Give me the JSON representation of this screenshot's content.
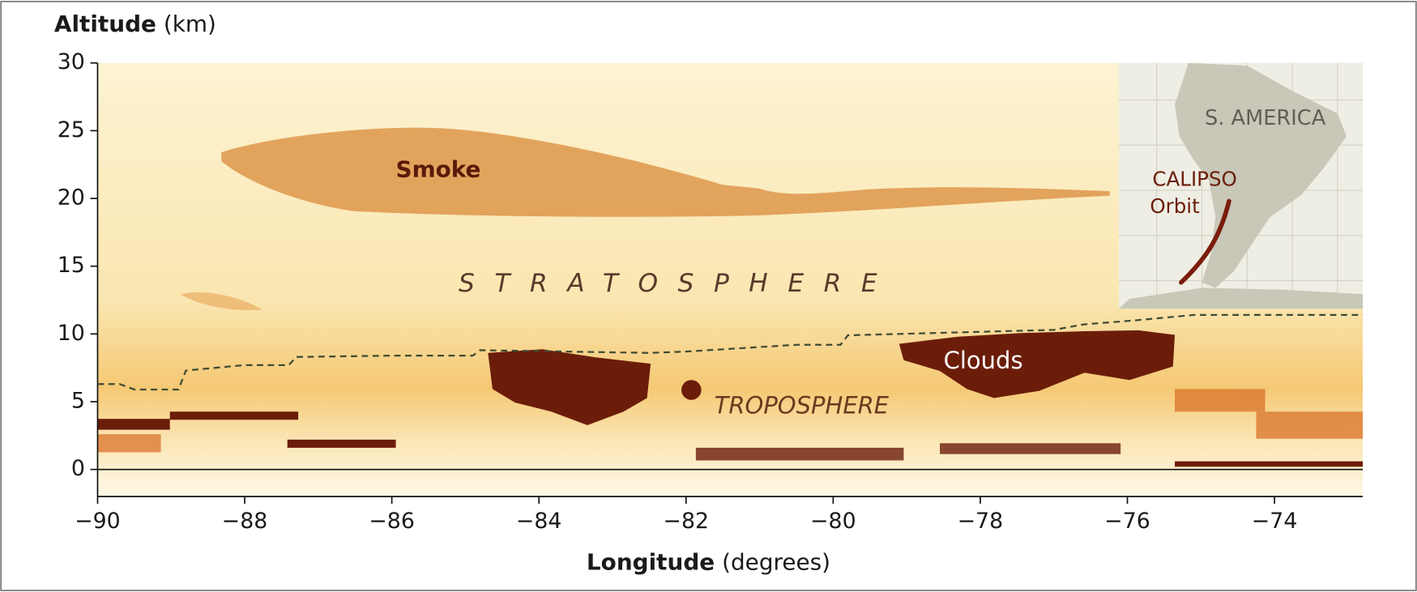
{
  "chart_data": {
    "type": "profile",
    "y_label": "Altitude",
    "y_unit": "(km)",
    "x_label": "Longitude",
    "x_unit": "(degrees)",
    "xlim": [
      -90,
      -72.8
    ],
    "xticks": [
      {
        "value": -90,
        "label": "−90"
      },
      {
        "value": -88,
        "label": "−88"
      },
      {
        "value": -86,
        "label": "−86"
      },
      {
        "value": -84,
        "label": "−84"
      },
      {
        "value": -82,
        "label": "−82"
      },
      {
        "value": -80,
        "label": "−80"
      },
      {
        "value": -78,
        "label": "−78"
      },
      {
        "value": -76,
        "label": "−76"
      },
      {
        "value": -74,
        "label": "−74"
      }
    ],
    "ylim": [
      -2,
      30
    ],
    "yticks": [
      0,
      5,
      10,
      15,
      20,
      25,
      30
    ],
    "annotations": [
      "Smoke",
      "STRATOSPHERE",
      "Clouds",
      "TROPOSPHERE",
      "S. AMERICA",
      "CALIPSO",
      "Orbit"
    ],
    "tropopause": {
      "color": "#3f4a33",
      "x": [
        -90,
        -89.7,
        -89.5,
        -88.9,
        -88.8,
        -88.0,
        -87.4,
        -87.3,
        -86.0,
        -84.9,
        -84.8,
        -82.5,
        -82.0,
        -80.5,
        -79.9,
        -79.8,
        -77.0,
        -76.6,
        -75.9,
        -75.1,
        -72.8
      ],
      "values": [
        6.3,
        6.3,
        5.9,
        5.9,
        7.3,
        7.7,
        7.7,
        8.3,
        8.4,
        8.4,
        8.8,
        8.6,
        8.7,
        9.2,
        9.2,
        9.9,
        10.3,
        10.7,
        11.0,
        11.4,
        11.4
      ]
    }
  }
}
